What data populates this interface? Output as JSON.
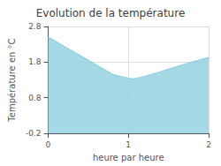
{
  "chart_data": {
    "type": "area",
    "title": "Evolution de la température",
    "xlabel": "heure par heure",
    "ylabel": "Température en °C",
    "x": [
      0,
      0.1,
      0.2,
      0.3,
      0.4,
      0.5,
      0.6,
      0.7,
      0.8,
      0.9,
      1.0,
      1.05,
      1.1,
      1.2,
      1.3,
      1.4,
      1.5,
      1.6,
      1.7,
      1.8,
      1.9,
      2.0
    ],
    "values": [
      2.5,
      2.37,
      2.24,
      2.11,
      1.98,
      1.85,
      1.72,
      1.59,
      1.46,
      1.4,
      1.35,
      1.33,
      1.35,
      1.4,
      1.46,
      1.53,
      1.6,
      1.67,
      1.74,
      1.81,
      1.87,
      1.93
    ],
    "color": "#90cfe0",
    "xlim": [
      0,
      2
    ],
    "ylim": [
      -0.2,
      2.8
    ],
    "xticks": [
      0,
      1,
      2
    ],
    "yticks": [
      -0.2,
      0.8,
      1.8,
      2.8
    ],
    "grid": true
  }
}
